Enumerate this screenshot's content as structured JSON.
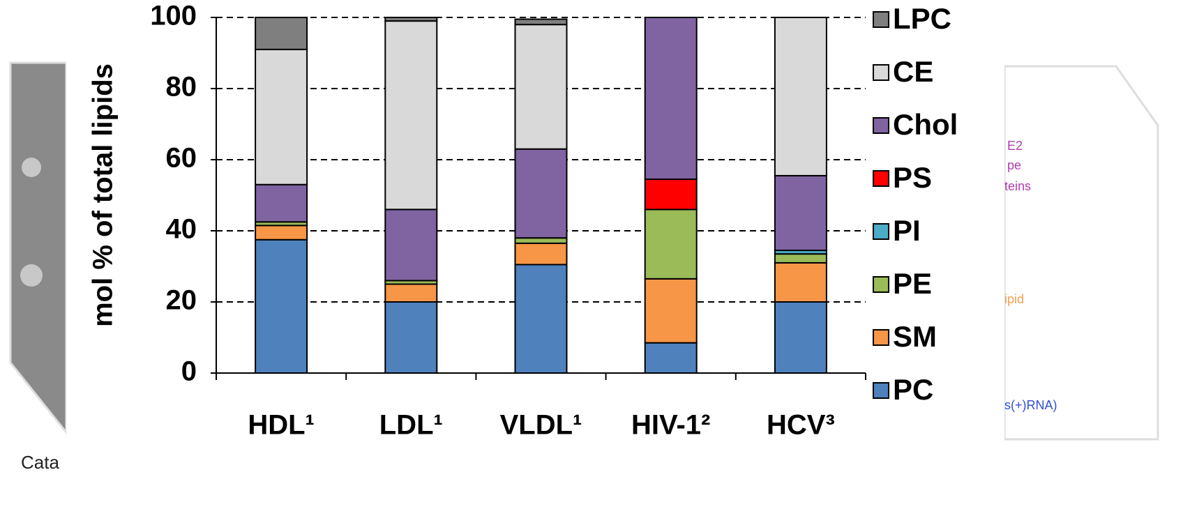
{
  "chart_data": {
    "type": "stacked_bar",
    "ylabel": "mol % of total lipids",
    "categories": [
      "HDL¹",
      "LDL¹",
      "VLDL¹",
      "HIV-1²",
      "HCV³"
    ],
    "series": [
      {
        "name": "PC",
        "color": "#4f81bd",
        "values": [
          37.5,
          20,
          30.5,
          8.5,
          20
        ]
      },
      {
        "name": "SM",
        "color": "#f79646",
        "values": [
          4,
          5,
          6,
          18,
          11
        ]
      },
      {
        "name": "PE",
        "color": "#9bbb59",
        "values": [
          1,
          1,
          1.5,
          19.5,
          2.5
        ]
      },
      {
        "name": "PI",
        "color": "#4bacc6",
        "values": [
          0,
          0,
          0,
          0,
          1
        ]
      },
      {
        "name": "PS",
        "color": "#ff0000",
        "values": [
          0,
          0,
          0,
          8.5,
          0
        ]
      },
      {
        "name": "Chol",
        "color": "#8064a2",
        "values": [
          10.5,
          20,
          25,
          45.5,
          21
        ]
      },
      {
        "name": "CE",
        "color": "#d9d9d9",
        "values": [
          38,
          53,
          35,
          0,
          44.5
        ]
      },
      {
        "name": "LPC",
        "color": "#7f7f7f",
        "values": [
          9,
          1,
          1.5,
          0,
          0
        ]
      }
    ],
    "ylim": [
      0,
      100
    ],
    "yticks": [
      0,
      20,
      40,
      60,
      80,
      100
    ],
    "grid": true,
    "legend": "right"
  },
  "background": {
    "texts": [
      "Cata",
      "E2",
      "pe",
      "teins",
      "ipid",
      "s(+)RNA)"
    ]
  }
}
